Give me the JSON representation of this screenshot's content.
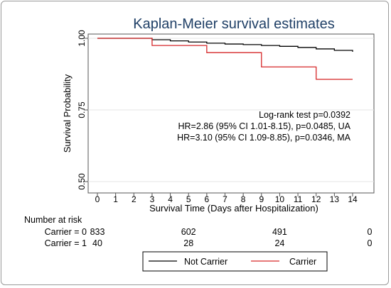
{
  "chart_data": {
    "type": "line",
    "step": true,
    "title": "Kaplan-Meier survival estimates",
    "xlabel": "Survival Time (Days after Hospitalization)",
    "ylabel": "Survival Probability",
    "xlim": [
      0,
      14
    ],
    "ylim": [
      0.5,
      1.0
    ],
    "x_ticks": [
      0,
      1,
      2,
      3,
      4,
      5,
      6,
      7,
      8,
      9,
      10,
      11,
      12,
      13,
      14
    ],
    "y_ticks": [
      {
        "value": 0.5,
        "label": "0.50"
      },
      {
        "value": 0.75,
        "label": "0.75"
      },
      {
        "value": 1.0,
        "label": "1.00"
      }
    ],
    "grid": "horizontal",
    "series": [
      {
        "name": "Not Carrier",
        "color": "#000000",
        "points": [
          [
            0,
            1.0
          ],
          [
            3,
            0.995
          ],
          [
            4,
            0.991
          ],
          [
            5,
            0.987
          ],
          [
            6,
            0.983
          ],
          [
            7,
            0.98
          ],
          [
            8,
            0.978
          ],
          [
            9,
            0.975
          ],
          [
            10,
            0.972
          ],
          [
            11,
            0.968
          ],
          [
            12,
            0.963
          ],
          [
            13,
            0.958
          ],
          [
            14,
            0.953
          ]
        ]
      },
      {
        "name": "Carrier",
        "color": "#d62728",
        "points": [
          [
            0,
            1.0
          ],
          [
            3,
            0.975
          ],
          [
            6,
            0.95
          ],
          [
            9,
            0.9
          ],
          [
            12,
            0.857
          ],
          [
            14,
            0.857
          ]
        ]
      }
    ],
    "annotations": [
      "Log-rank test p=0.0392",
      "HR=2.86 (95% CI 1.01-8.15), p=0.0485, UA",
      "HR=3.10 (95% CI 1.09-8.85), p=0.0346, MA"
    ],
    "risk_table": {
      "title": "Number at risk",
      "times": [
        0,
        5,
        10,
        15
      ],
      "rows": [
        {
          "label": "Carrier = 0",
          "values": [
            "833",
            "602",
            "491",
            "0"
          ]
        },
        {
          "label": "Carrier = 1",
          "values": [
            "40",
            "28",
            "24",
            "0"
          ]
        }
      ]
    },
    "legend": {
      "position": "bottom",
      "items": [
        {
          "label": "Not Carrier",
          "color": "#000000"
        },
        {
          "label": "Carrier",
          "color": "#d62728"
        }
      ]
    }
  }
}
